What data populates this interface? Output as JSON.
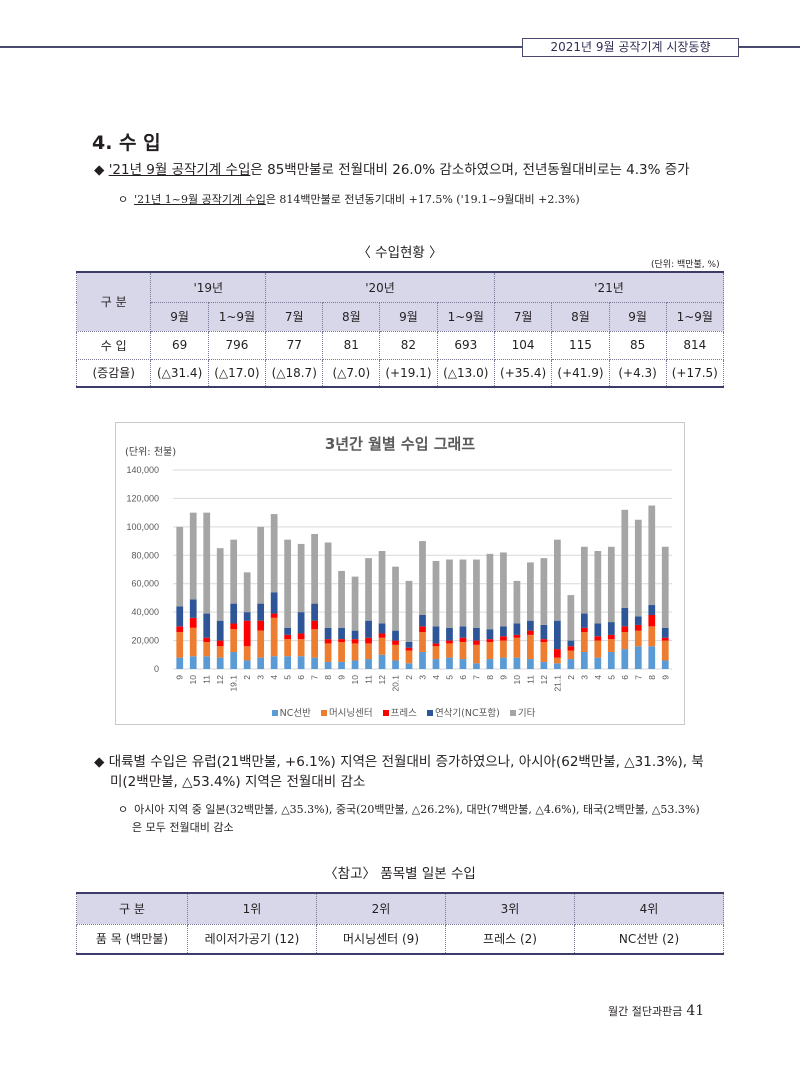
{
  "header": {
    "title": "2021년 9월 공작기계 시장동향"
  },
  "section": {
    "title": "4. 수 입"
  },
  "bullet1": {
    "marker": "◆",
    "underlined": "'21년 9월 공작기계 수입",
    "rest": "은 85백만불로 전월대비 26.0% 감소하였으며, 전년동월대비로는 4.3% 증가"
  },
  "sub1": {
    "marker": "ㅇ",
    "underlined": "'21년 1~9월 공작기계 수입",
    "rest": "은 814백만불로 전년동기대비 +17.5% ('19.1~9월대비 +2.3%)"
  },
  "table1": {
    "caption": "〈 수입현황 〉",
    "unit": "(단위: 백만불, %)",
    "corner": "구 분",
    "years": [
      "'19년",
      "'20년",
      "'21년"
    ],
    "months": [
      "9월",
      "1~9월",
      "7월",
      "8월",
      "9월",
      "1~9월",
      "7월",
      "8월",
      "9월",
      "1~9월"
    ],
    "row_import_label": "수 입",
    "row_import": [
      "69",
      "796",
      "77",
      "81",
      "82",
      "693",
      "104",
      "115",
      "85",
      "814"
    ],
    "row_rate_label": "(증감율)",
    "row_rate": [
      "(△31.4)",
      "(△17.0)",
      "(△18.7)",
      "(△7.0)",
      "(+19.1)",
      "(△13.0)",
      "(+35.4)",
      "(+41.9)",
      "(+4.3)",
      "(+17.5)"
    ]
  },
  "chart_data": {
    "type": "bar",
    "stacked": true,
    "title": "3년간 월별 수입 그래프",
    "unit_label": "(단위: 천불)",
    "ylim": [
      0,
      140000
    ],
    "yticks": [
      "0",
      "20,000",
      "40,000",
      "60,000",
      "80,000",
      "100,000",
      "120,000",
      "140,000"
    ],
    "grid": true,
    "legend_position": "bottom",
    "categories": [
      "9",
      "10",
      "11",
      "12",
      "19.1",
      "2",
      "3",
      "4",
      "5",
      "6",
      "7",
      "8",
      "9",
      "10",
      "11",
      "12",
      "20.1",
      "2",
      "3",
      "4",
      "5",
      "6",
      "7",
      "8",
      "9",
      "10",
      "11",
      "12",
      "21.1",
      "2",
      "3",
      "4",
      "5",
      "6",
      "7",
      "8",
      "9"
    ],
    "series": [
      {
        "name": "NC선반",
        "color": "#5b9bd5",
        "values": [
          8000,
          9000,
          9000,
          8000,
          12000,
          6000,
          8000,
          9000,
          9000,
          9000,
          8000,
          5000,
          5000,
          6000,
          7000,
          10000,
          6000,
          4000,
          12000,
          7000,
          8000,
          7000,
          4000,
          7000,
          8000,
          8000,
          7000,
          5000,
          4000,
          7000,
          12000,
          8000,
          12000,
          14000,
          16000,
          16000,
          6000
        ]
      },
      {
        "name": "머시닝센터",
        "color": "#ed7d31",
        "values": [
          18000,
          20000,
          10000,
          8000,
          16000,
          10000,
          19000,
          27000,
          12000,
          12000,
          20000,
          13000,
          14000,
          12000,
          11000,
          12000,
          11000,
          9000,
          14000,
          9000,
          10000,
          12000,
          13000,
          12000,
          12000,
          14000,
          17000,
          14000,
          4000,
          6000,
          14000,
          12000,
          9000,
          12000,
          11000,
          14000,
          14000
        ]
      },
      {
        "name": "프레스",
        "color": "#ff0000",
        "values": [
          4000,
          7000,
          3000,
          4000,
          4000,
          18000,
          7000,
          3000,
          3000,
          4000,
          6000,
          3000,
          2000,
          3000,
          4000,
          3000,
          3000,
          2000,
          4000,
          2000,
          2000,
          3000,
          3000,
          2000,
          3000,
          2000,
          3000,
          2000,
          6000,
          3000,
          3000,
          3000,
          3000,
          4000,
          4000,
          8000,
          2000
        ]
      },
      {
        "name": "연삭기(NC포함)",
        "color": "#2e5597",
        "values": [
          14000,
          13000,
          17000,
          14000,
          14000,
          6000,
          12000,
          15000,
          5000,
          15000,
          12000,
          8000,
          8000,
          6000,
          12000,
          7000,
          7000,
          4000,
          8000,
          12000,
          9000,
          8000,
          9000,
          7000,
          7000,
          8000,
          7000,
          10000,
          20000,
          4000,
          10000,
          9000,
          9000,
          13000,
          6000,
          7000,
          7000
        ]
      },
      {
        "name": "기타",
        "color": "#a5a5a5",
        "values": [
          56000,
          61000,
          71000,
          51000,
          45000,
          28000,
          54000,
          55000,
          62000,
          48000,
          49000,
          60000,
          40000,
          38000,
          44000,
          51000,
          45000,
          43000,
          52000,
          46000,
          48000,
          47000,
          48000,
          53000,
          52000,
          30000,
          41000,
          47000,
          57000,
          32000,
          47000,
          51000,
          53000,
          69000,
          68000,
          70000,
          57000
        ]
      }
    ]
  },
  "bullet2": {
    "marker": "◆",
    "line1": "대륙별 수입은 유럽(21백만불, +6.1%) 지역은 전월대비 증가하였으나, 아시아(62백만불, △31.3%), 북",
    "line2": "미(2백만불, △53.4%) 지역은 전월대비 감소"
  },
  "sub2": {
    "marker": "ㅇ",
    "line1": "아시아 지역 중 일본(32백만불, △35.3%), 중국(20백만불, △26.2%), 대만(7백만불, △4.6%), 태국(2백만불, △53.3%)",
    "line2": "은 모두 전월대비 감소"
  },
  "table2": {
    "caption": "〈참고〉 품목별 일본 수입",
    "headers": [
      "구 분",
      "1위",
      "2위",
      "3위",
      "4위"
    ],
    "row_label": "품 목 (백만불)",
    "row": [
      "레이저가공기 (12)",
      "머시닝센터 (9)",
      "프레스 (2)",
      "NC선반 (2)"
    ]
  },
  "footer": {
    "text": "월간 절단과판금",
    "page": "41"
  }
}
